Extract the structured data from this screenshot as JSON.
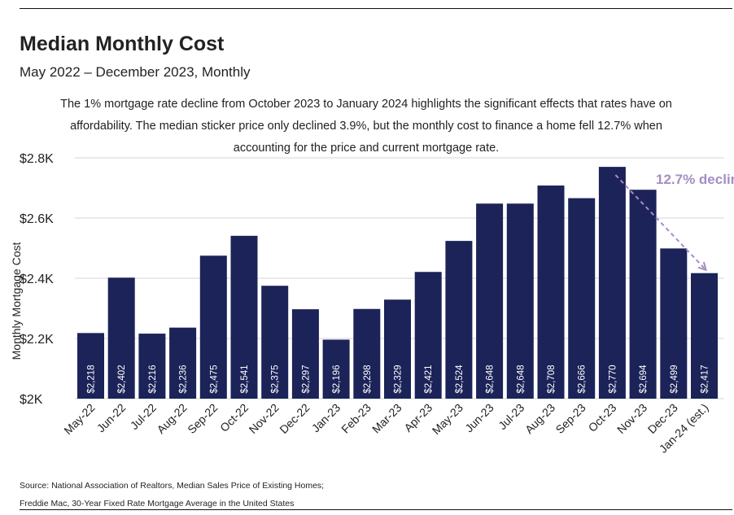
{
  "title": "Median Monthly Cost",
  "subtitle": "May 2022 – December 2023, Monthly",
  "annotation": "The 1% mortgage rate decline from October 2023 to January 2024 highlights the significant effects that rates have on affordability. The median sticker price only declined 3.9%, but the monthly cost to finance a home fell 12.7% when accounting for the price and current mortgage rate.",
  "source": {
    "line1": "Source: National Association of Realtors, Median Sales Price of Existing Homes;",
    "line2": "Freddie Mac, 30-Year Fixed Rate Mortgage Average in the United States"
  },
  "colors": {
    "bar": "#1b2358",
    "grid": "#d6d6d6",
    "arrow": "#a58dc4",
    "bar_label": "#ffffff"
  },
  "chart_data": {
    "type": "bar",
    "ylabel": "Monthly Mortgage Cost",
    "ylim": [
      2000,
      2800
    ],
    "yticks": [
      2000,
      2200,
      2400,
      2600,
      2800
    ],
    "ytick_labels": [
      "$2K",
      "$2.2K",
      "$2.4K",
      "$2.6K",
      "$2.8K"
    ],
    "grid": true,
    "categories": [
      "May-22",
      "Jun-22",
      "Jul-22",
      "Aug-22",
      "Sep-22",
      "Oct-22",
      "Nov-22",
      "Dec-22",
      "Jan-23",
      "Feb-23",
      "Mar-23",
      "Apr-23",
      "May-23",
      "Jun-23",
      "Jul-23",
      "Aug-23",
      "Sep-23",
      "Oct-23",
      "Nov-23",
      "Dec-23",
      "Jan-24 (est.)"
    ],
    "values": [
      2218,
      2402,
      2216,
      2236,
      2475,
      2541,
      2375,
      2297,
      2196,
      2298,
      2329,
      2421,
      2524,
      2648,
      2648,
      2708,
      2666,
      2770,
      2694,
      2499,
      2417
    ],
    "data_labels": [
      "$2,218",
      "$2,402",
      "$2,216",
      "$2,236",
      "$2,475",
      "$2,541",
      "$2,375",
      "$2,297",
      "$2,196",
      "$2,298",
      "$2,329",
      "$2,421",
      "$2,524",
      "$2,648",
      "$2,648",
      "$2,708",
      "$2,666",
      "$2,770",
      "$2,694",
      "$2,499",
      "$2,417"
    ],
    "callout": {
      "text": "12.7% declin",
      "from_category": "Oct-23",
      "to_category": "Jan-24 (est.)"
    }
  }
}
